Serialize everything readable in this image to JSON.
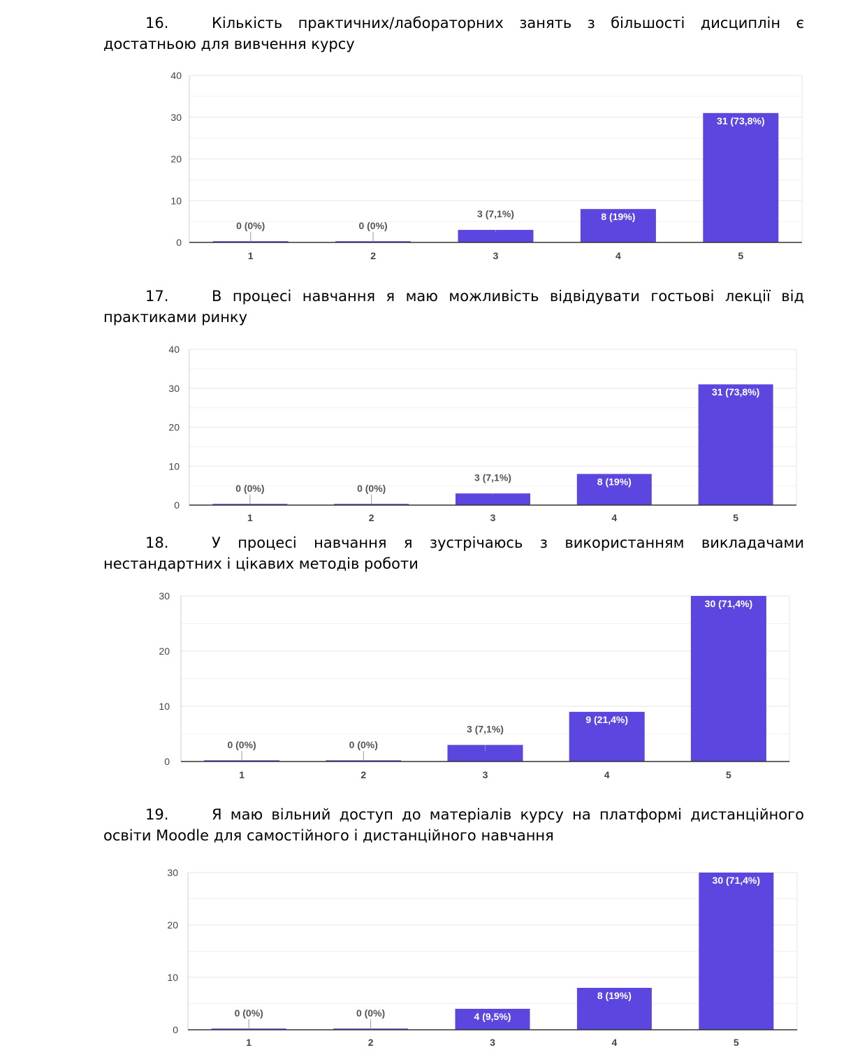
{
  "questions": [
    {
      "number": "16.",
      "text": "Кількість практичних/лабораторних занять з більшості дисциплін є достатньою для вивчення курсу"
    },
    {
      "number": "17.",
      "text": "В процесі навчання я маю можливість відвідувати гостьові лекції від практиками ринку"
    },
    {
      "number": "18.",
      "text": "У процесі навчання я зустрічаюсь з використанням викладачами нестандартних і цікавих методів роботи"
    },
    {
      "number": "19.",
      "text": "Я маю вільний доступ до матеріалів курсу на платформі дистанційного освіти Moodle для самостійного і дистанційного навчання"
    }
  ],
  "colors": {
    "bar": "#5b47e0",
    "grid": "#e6e6e6",
    "axis": "#333333",
    "tick_text": "#444444"
  },
  "chart_data": [
    {
      "type": "bar",
      "categories": [
        "1",
        "2",
        "3",
        "4",
        "5"
      ],
      "values": [
        0,
        0,
        3,
        8,
        31
      ],
      "labels": [
        "0 (0%)",
        "0 (0%)",
        "3 (7,1%)",
        "8 (19%)",
        "31 (73,8%)"
      ],
      "ylim": [
        0,
        40
      ],
      "yticks": [
        0,
        10,
        20,
        30,
        40
      ],
      "grid": true
    },
    {
      "type": "bar",
      "categories": [
        "1",
        "2",
        "3",
        "4",
        "5"
      ],
      "values": [
        0,
        0,
        3,
        8,
        31
      ],
      "labels": [
        "0 (0%)",
        "0 (0%)",
        "3 (7,1%)",
        "8 (19%)",
        "31 (73,8%)"
      ],
      "ylim": [
        0,
        40
      ],
      "yticks": [
        0,
        10,
        20,
        30,
        40
      ],
      "grid": true
    },
    {
      "type": "bar",
      "categories": [
        "1",
        "2",
        "3",
        "4",
        "5"
      ],
      "values": [
        0,
        0,
        3,
        9,
        30
      ],
      "labels": [
        "0 (0%)",
        "0 (0%)",
        "3 (7,1%)",
        "9 (21,4%)",
        "30 (71,4%)"
      ],
      "ylim": [
        0,
        30
      ],
      "yticks": [
        0,
        10,
        20,
        30
      ],
      "grid": true
    },
    {
      "type": "bar",
      "categories": [
        "1",
        "2",
        "3",
        "4",
        "5"
      ],
      "values": [
        0,
        0,
        4,
        8,
        30
      ],
      "labels": [
        "0 (0%)",
        "0 (0%)",
        "4 (9,5%)",
        "8 (19%)",
        "30 (71,4%)"
      ],
      "ylim": [
        0,
        30
      ],
      "yticks": [
        0,
        10,
        20,
        30
      ],
      "grid": true
    }
  ]
}
